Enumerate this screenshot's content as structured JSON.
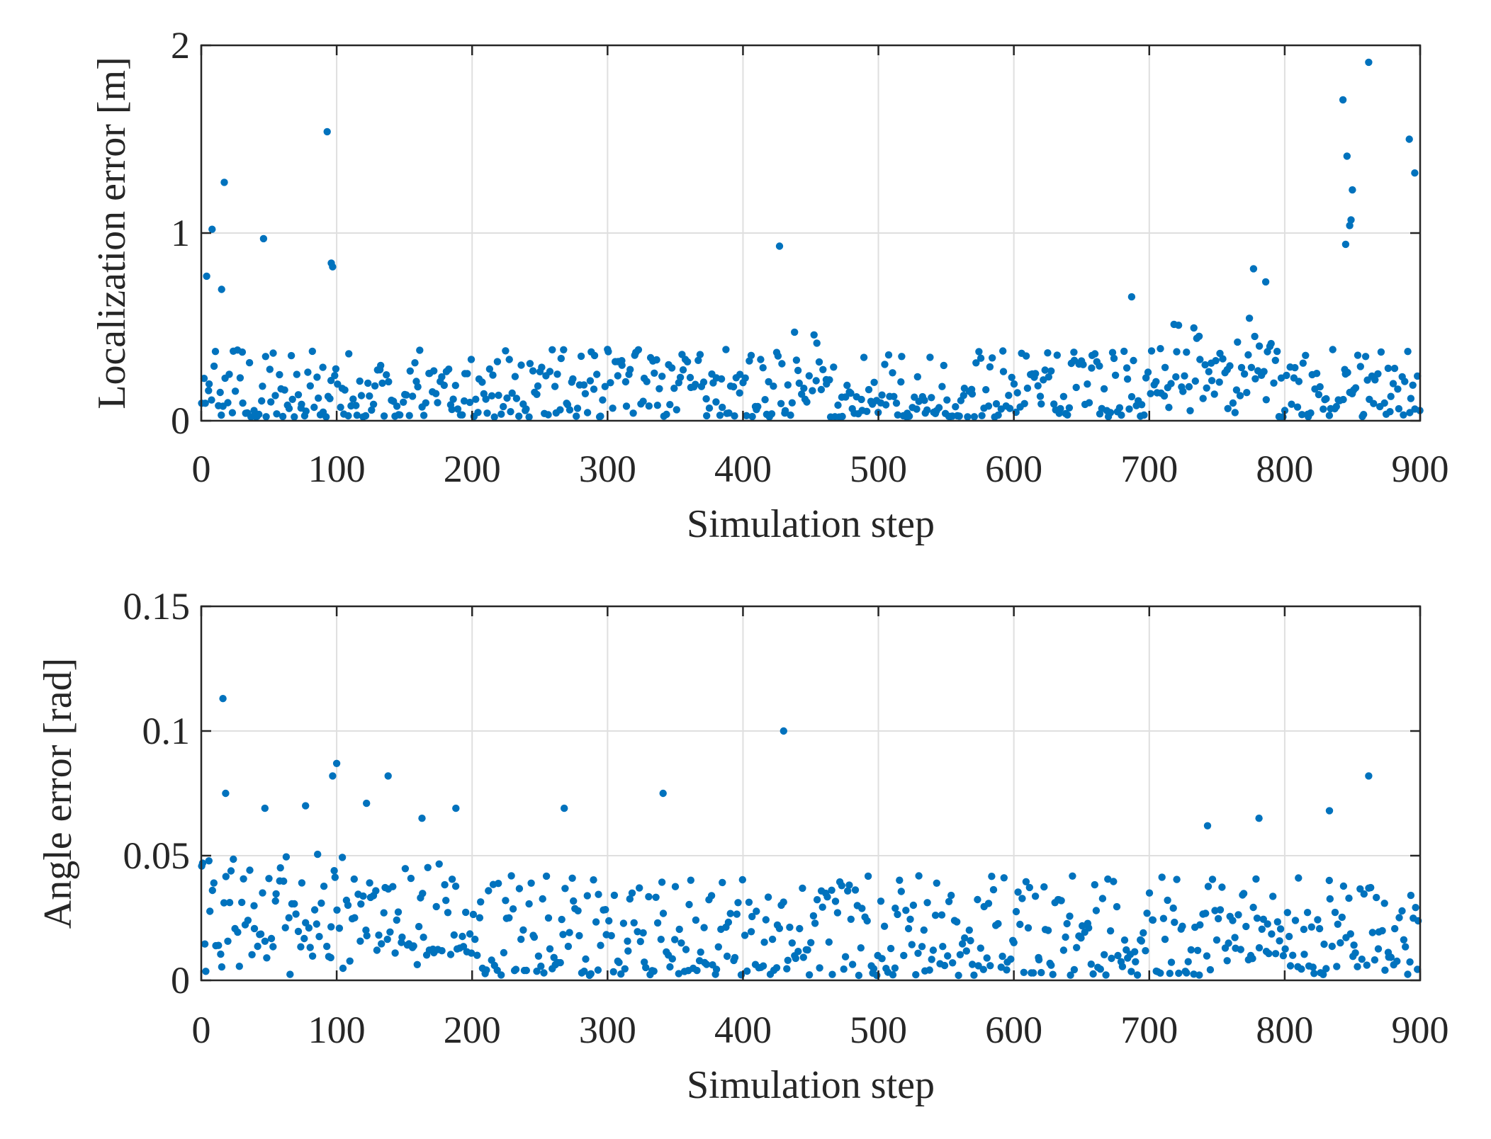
{
  "chart_data": [
    {
      "type": "scatter",
      "title": "",
      "xlabel": "Simulation step",
      "ylabel": "Localization error [m]",
      "xlim": [
        0,
        900
      ],
      "ylim": [
        0,
        2
      ],
      "xticks": [
        "0",
        "100",
        "200",
        "300",
        "400",
        "500",
        "600",
        "700",
        "800",
        "900"
      ],
      "yticks": [
        "0",
        "1",
        "2"
      ],
      "grid": true,
      "marker_color": "#0072bd",
      "series": [
        {
          "name": "Localization error",
          "outliers": [
            {
              "x": 4,
              "y": 0.77
            },
            {
              "x": 8,
              "y": 1.02
            },
            {
              "x": 15,
              "y": 0.7
            },
            {
              "x": 17,
              "y": 1.27
            },
            {
              "x": 46,
              "y": 0.97
            },
            {
              "x": 93,
              "y": 1.54
            },
            {
              "x": 96,
              "y": 0.84
            },
            {
              "x": 97,
              "y": 0.82
            },
            {
              "x": 427,
              "y": 0.93
            },
            {
              "x": 687,
              "y": 0.66
            },
            {
              "x": 777,
              "y": 0.81
            },
            {
              "x": 786,
              "y": 0.74
            },
            {
              "x": 845,
              "y": 0.94
            },
            {
              "x": 843,
              "y": 1.71
            },
            {
              "x": 846,
              "y": 1.41
            },
            {
              "x": 848,
              "y": 1.04
            },
            {
              "x": 849,
              "y": 1.07
            },
            {
              "x": 850,
              "y": 1.23
            },
            {
              "x": 862,
              "y": 1.91
            },
            {
              "x": 892,
              "y": 1.5
            },
            {
              "x": 896,
              "y": 1.32
            }
          ]
        }
      ]
    },
    {
      "type": "scatter",
      "title": "",
      "xlabel": "Simulation step",
      "ylabel": "Angle error [rad]",
      "xlim": [
        0,
        900
      ],
      "ylim": [
        0,
        0.15
      ],
      "xticks": [
        "0",
        "100",
        "200",
        "300",
        "400",
        "500",
        "600",
        "700",
        "800",
        "900"
      ],
      "yticks": [
        "0",
        "0.05",
        "0.1",
        "0.15"
      ],
      "grid": true,
      "marker_color": "#0072bd",
      "series": [
        {
          "name": "Angle error",
          "outliers": [
            {
              "x": 1,
              "y": 0.047
            },
            {
              "x": 16,
              "y": 0.113
            },
            {
              "x": 18,
              "y": 0.075
            },
            {
              "x": 47,
              "y": 0.069
            },
            {
              "x": 77,
              "y": 0.07
            },
            {
              "x": 97,
              "y": 0.082
            },
            {
              "x": 100,
              "y": 0.087
            },
            {
              "x": 122,
              "y": 0.071
            },
            {
              "x": 138,
              "y": 0.082
            },
            {
              "x": 163,
              "y": 0.065
            },
            {
              "x": 188,
              "y": 0.069
            },
            {
              "x": 268,
              "y": 0.069
            },
            {
              "x": 341,
              "y": 0.075
            },
            {
              "x": 430,
              "y": 0.1
            },
            {
              "x": 743,
              "y": 0.062
            },
            {
              "x": 781,
              "y": 0.065
            },
            {
              "x": 833,
              "y": 0.068
            },
            {
              "x": 862,
              "y": 0.082
            }
          ]
        }
      ]
    }
  ]
}
